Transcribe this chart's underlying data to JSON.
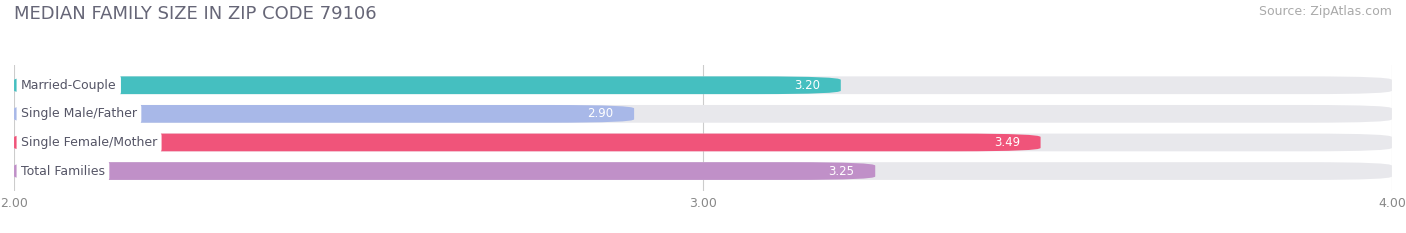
{
  "title": "MEDIAN FAMILY SIZE IN ZIP CODE 79106",
  "source": "Source: ZipAtlas.com",
  "categories": [
    "Married-Couple",
    "Single Male/Father",
    "Single Female/Mother",
    "Total Families"
  ],
  "values": [
    3.2,
    2.9,
    3.49,
    3.25
  ],
  "bar_colors": [
    "#45bfc0",
    "#a8b8e8",
    "#f0547a",
    "#c090c8"
  ],
  "track_color": "#e8e8ec",
  "label_bg": "white",
  "label_text_color": "#555566",
  "value_text_color_inside": "white",
  "value_text_color_outside": "#888888",
  "xlim": [
    2.0,
    4.0
  ],
  "xticks": [
    2.0,
    3.0,
    4.0
  ],
  "xtick_labels": [
    "2.00",
    "3.00",
    "4.00"
  ],
  "bar_height": 0.62,
  "figsize": [
    14.06,
    2.33
  ],
  "dpi": 100,
  "bg_color": "#ffffff",
  "title_fontsize": 13,
  "title_color": "#666677",
  "source_fontsize": 9,
  "source_color": "#aaaaaa",
  "label_fontsize": 9,
  "value_fontsize": 8.5,
  "tick_fontsize": 9,
  "grid_color": "#cccccc",
  "rounding": 0.12
}
